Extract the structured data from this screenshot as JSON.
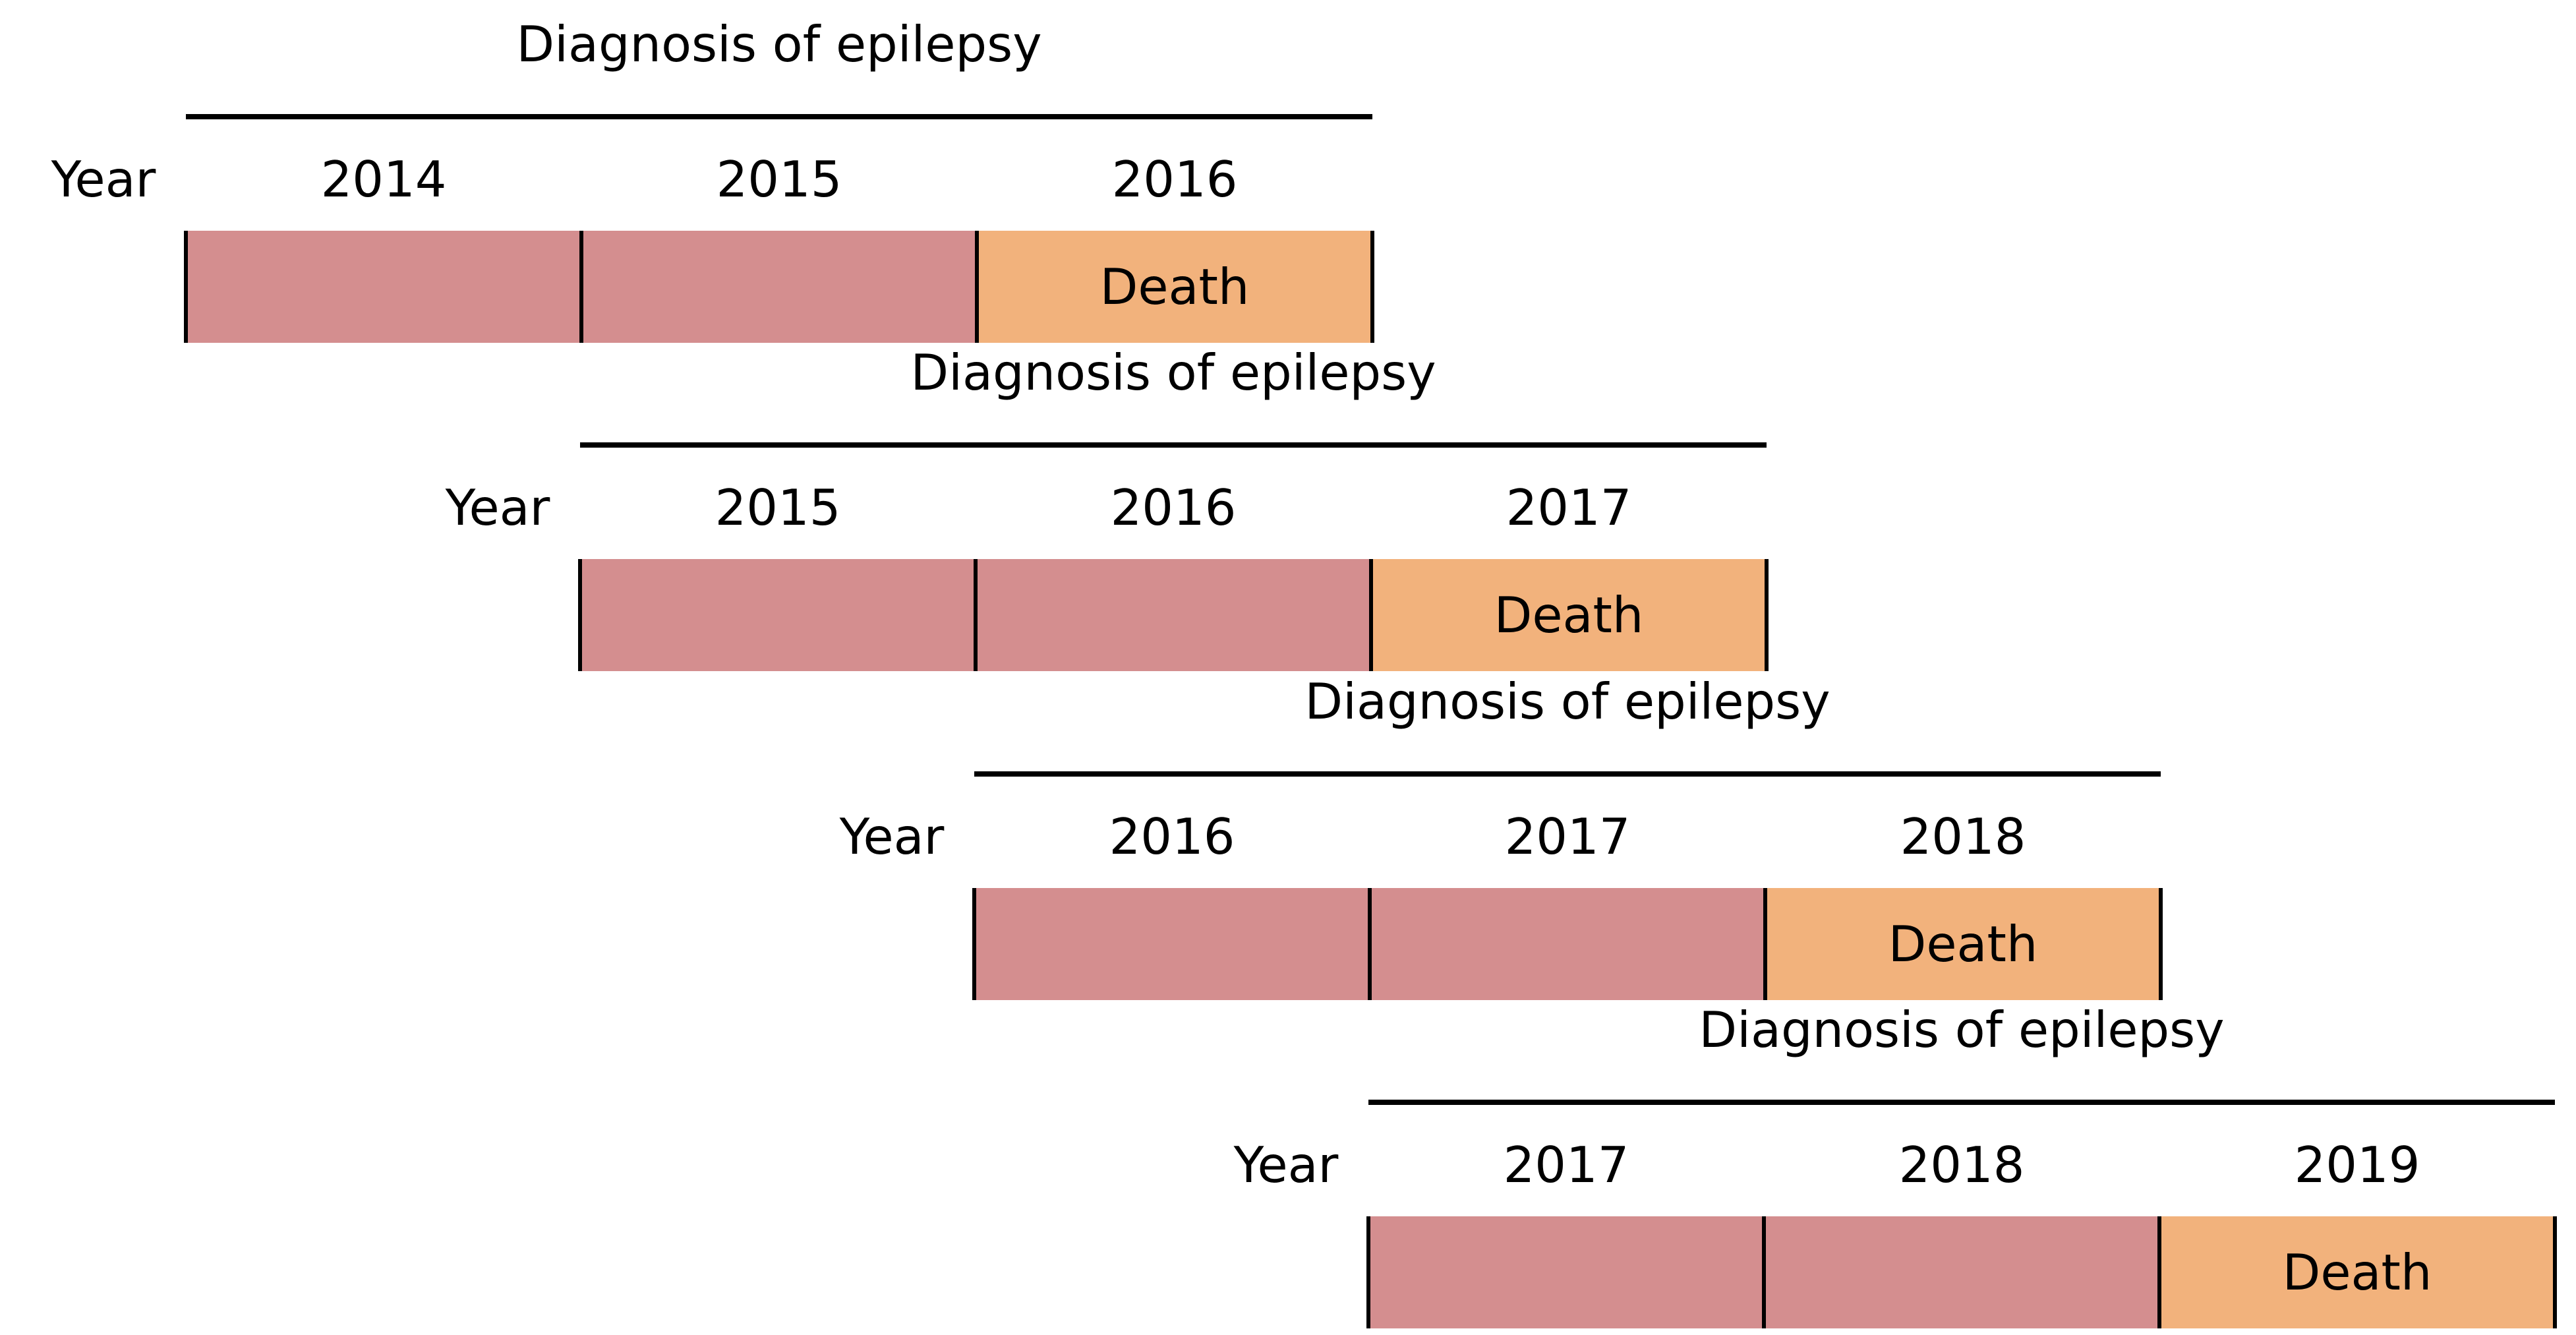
{
  "diagram": {
    "colors": {
      "pre_death_years": "#d48e8f",
      "death_year": "#f2b27c",
      "lines": "#000000"
    },
    "cohorts": [
      {
        "header": "Diagnosis of epilepsy",
        "year_label": "Year",
        "years": [
          "2014",
          "2015",
          "2016"
        ],
        "death_label": "Death"
      },
      {
        "header": "Diagnosis of epilepsy",
        "year_label": "Year",
        "years": [
          "2015",
          "2016",
          "2017"
        ],
        "death_label": "Death"
      },
      {
        "header": "Diagnosis of epilepsy",
        "year_label": "Year",
        "years": [
          "2016",
          "2017",
          "2018"
        ],
        "death_label": "Death"
      },
      {
        "header": "Diagnosis of epilepsy",
        "year_label": "Year",
        "years": [
          "2017",
          "2018",
          "2019"
        ],
        "death_label": "Death"
      }
    ]
  }
}
